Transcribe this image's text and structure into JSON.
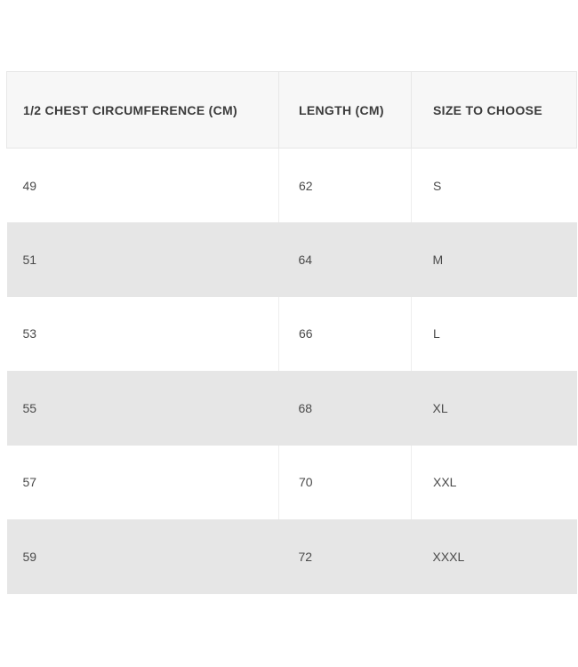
{
  "table": {
    "columns": [
      {
        "label": "1/2 CHEST CIRCUMFERENCE (CM)"
      },
      {
        "label": "LENGTH (CM)"
      },
      {
        "label": "SIZE TO CHOOSE"
      }
    ],
    "rows": [
      {
        "chest": "49",
        "length": "62",
        "size": "S"
      },
      {
        "chest": "51",
        "length": "64",
        "size": "M"
      },
      {
        "chest": "53",
        "length": "66",
        "size": "L"
      },
      {
        "chest": "55",
        "length": "68",
        "size": "XL"
      },
      {
        "chest": "57",
        "length": "70",
        "size": "XXL"
      },
      {
        "chest": "59",
        "length": "72",
        "size": "XXXL"
      }
    ],
    "colors": {
      "header_background": "#f7f7f7",
      "header_border": "#e7e7e7",
      "stripe_row_background": "#e6e6e6",
      "column_divider": "#ededed",
      "header_text": "#3b3b3b",
      "cell_text": "#4a4a4a",
      "page_background": "#ffffff"
    }
  }
}
